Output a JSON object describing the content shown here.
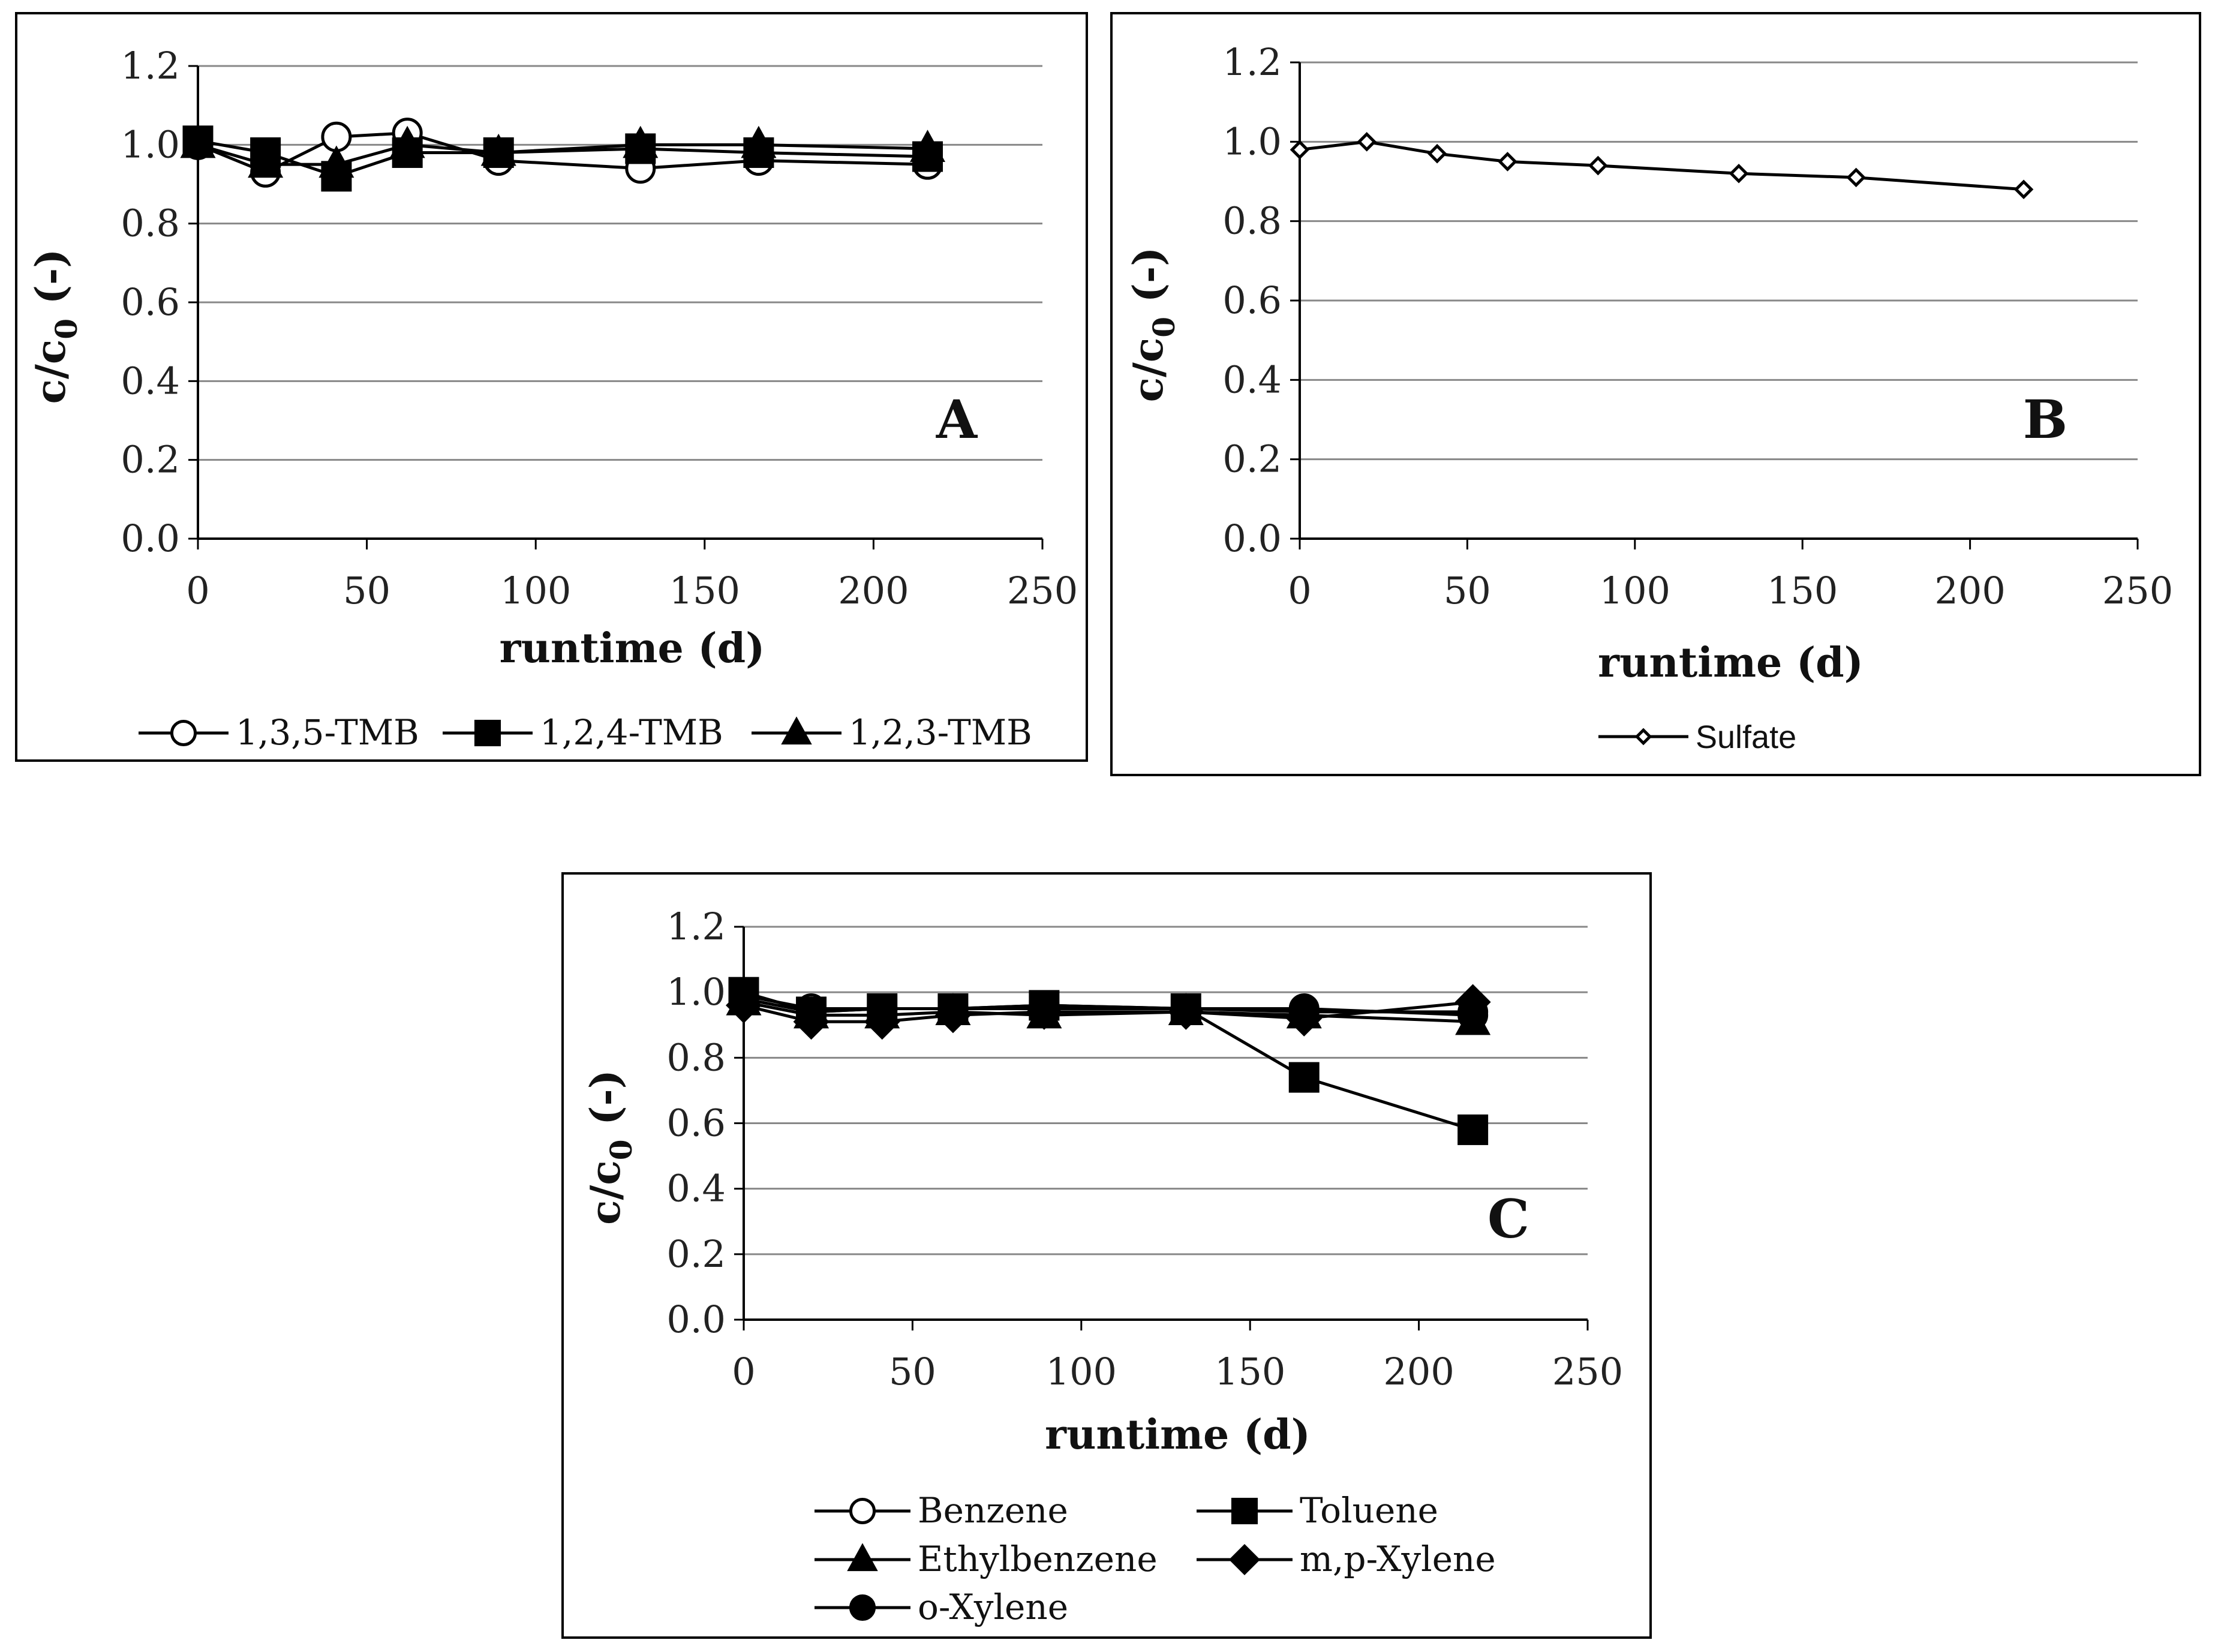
{
  "chart_data": [
    {
      "panel": "A",
      "type": "line",
      "panel_label": "A",
      "xlabel": "runtime (d)",
      "ylabel_main": "c/c",
      "ylabel_sub": "0",
      "ylabel_tail": " (-)",
      "xlim": [
        0,
        250
      ],
      "ylim": [
        0,
        1.2
      ],
      "x_ticks": [
        0,
        50,
        100,
        150,
        200,
        250
      ],
      "y_ticks": [
        0.0,
        0.2,
        0.4,
        0.6,
        0.8,
        1.0,
        1.2
      ],
      "x_tick_labels": [
        "0",
        "50",
        "100",
        "150",
        "200",
        "250"
      ],
      "y_tick_labels": [
        "0.0",
        "0.2",
        "0.4",
        "0.6",
        "0.8",
        "1.0",
        "1.2"
      ],
      "grid": true,
      "legend_position": "bottom",
      "series": [
        {
          "name": "1,3,5-TMB",
          "marker": "circle-open",
          "x": [
            0,
            20,
            41,
            62,
            89,
            131,
            166,
            216
          ],
          "y": [
            1.0,
            0.93,
            1.02,
            1.03,
            0.96,
            0.94,
            0.96,
            0.95
          ]
        },
        {
          "name": "1,2,4-TMB",
          "marker": "square-filled",
          "x": [
            0,
            20,
            41,
            62,
            89,
            131,
            166,
            216
          ],
          "y": [
            1.01,
            0.98,
            0.92,
            0.98,
            0.98,
            0.99,
            0.98,
            0.97
          ]
        },
        {
          "name": "1,2,3-TMB",
          "marker": "triangle-filled",
          "x": [
            0,
            20,
            41,
            62,
            89,
            131,
            166,
            216
          ],
          "y": [
            1.0,
            0.95,
            0.95,
            1.0,
            0.98,
            1.0,
            1.0,
            0.99
          ]
        }
      ]
    },
    {
      "panel": "B",
      "type": "line",
      "panel_label": "B",
      "xlabel": "runtime (d)",
      "ylabel_main": "c/c",
      "ylabel_sub": "0",
      "ylabel_tail": " (-)",
      "xlim": [
        0,
        250
      ],
      "ylim": [
        0,
        1.2
      ],
      "x_ticks": [
        0,
        50,
        100,
        150,
        200,
        250
      ],
      "y_ticks": [
        0.0,
        0.2,
        0.4,
        0.6,
        0.8,
        1.0,
        1.2
      ],
      "x_tick_labels": [
        "0",
        "50",
        "100",
        "150",
        "200",
        "250"
      ],
      "y_tick_labels": [
        "0.0",
        "0.2",
        "0.4",
        "0.6",
        "0.8",
        "1.0",
        "1.2"
      ],
      "grid": true,
      "legend_position": "bottom",
      "series": [
        {
          "name": "Sulfate",
          "marker": "diamond-open",
          "x": [
            0,
            20,
            41,
            62,
            89,
            131,
            166,
            216
          ],
          "y": [
            0.98,
            1.0,
            0.97,
            0.95,
            0.94,
            0.92,
            0.91,
            0.88
          ]
        }
      ]
    },
    {
      "panel": "C",
      "type": "line",
      "panel_label": "C",
      "xlabel": "runtime (d)",
      "ylabel_main": "c/c",
      "ylabel_sub": "0",
      "ylabel_tail": " (-)",
      "xlim": [
        0,
        250
      ],
      "ylim": [
        0,
        1.2
      ],
      "x_ticks": [
        0,
        50,
        100,
        150,
        200,
        250
      ],
      "y_ticks": [
        0.0,
        0.2,
        0.4,
        0.6,
        0.8,
        1.0,
        1.2
      ],
      "x_tick_labels": [
        "0",
        "50",
        "100",
        "150",
        "200",
        "250"
      ],
      "y_tick_labels": [
        "0.0",
        "0.2",
        "0.4",
        "0.6",
        "0.8",
        "1.0",
        "1.2"
      ],
      "grid": true,
      "legend_position": "bottom",
      "series": [
        {
          "name": "Benzene",
          "marker": "circle-open",
          "x": [
            0,
            20,
            41,
            62,
            89,
            131,
            166,
            216
          ],
          "y": [
            0.99,
            0.95,
            0.95,
            0.95,
            0.96,
            0.95,
            0.94,
            0.94
          ]
        },
        {
          "name": "Toluene",
          "marker": "square-filled",
          "x": [
            0,
            20,
            41,
            62,
            89,
            131,
            166,
            216
          ],
          "y": [
            1.0,
            0.94,
            0.95,
            0.95,
            0.96,
            0.95,
            0.74,
            0.58
          ]
        },
        {
          "name": "Ethylbenzene",
          "marker": "triangle-filled",
          "x": [
            0,
            20,
            41,
            62,
            89,
            131,
            166,
            216
          ],
          "y": [
            0.97,
            0.93,
            0.93,
            0.94,
            0.93,
            0.94,
            0.93,
            0.91
          ]
        },
        {
          "name": "m,p-Xylene",
          "marker": "diamond-filled",
          "x": [
            0,
            20,
            41,
            62,
            89,
            131,
            166,
            216
          ],
          "y": [
            0.96,
            0.91,
            0.91,
            0.93,
            0.94,
            0.94,
            0.92,
            0.97
          ]
        },
        {
          "name": "o-Xylene",
          "marker": "circle-filled",
          "x": [
            0,
            20,
            41,
            62,
            89,
            131,
            166,
            216
          ],
          "y": [
            0.98,
            0.94,
            0.95,
            0.95,
            0.95,
            0.95,
            0.95,
            0.93
          ]
        }
      ]
    }
  ]
}
